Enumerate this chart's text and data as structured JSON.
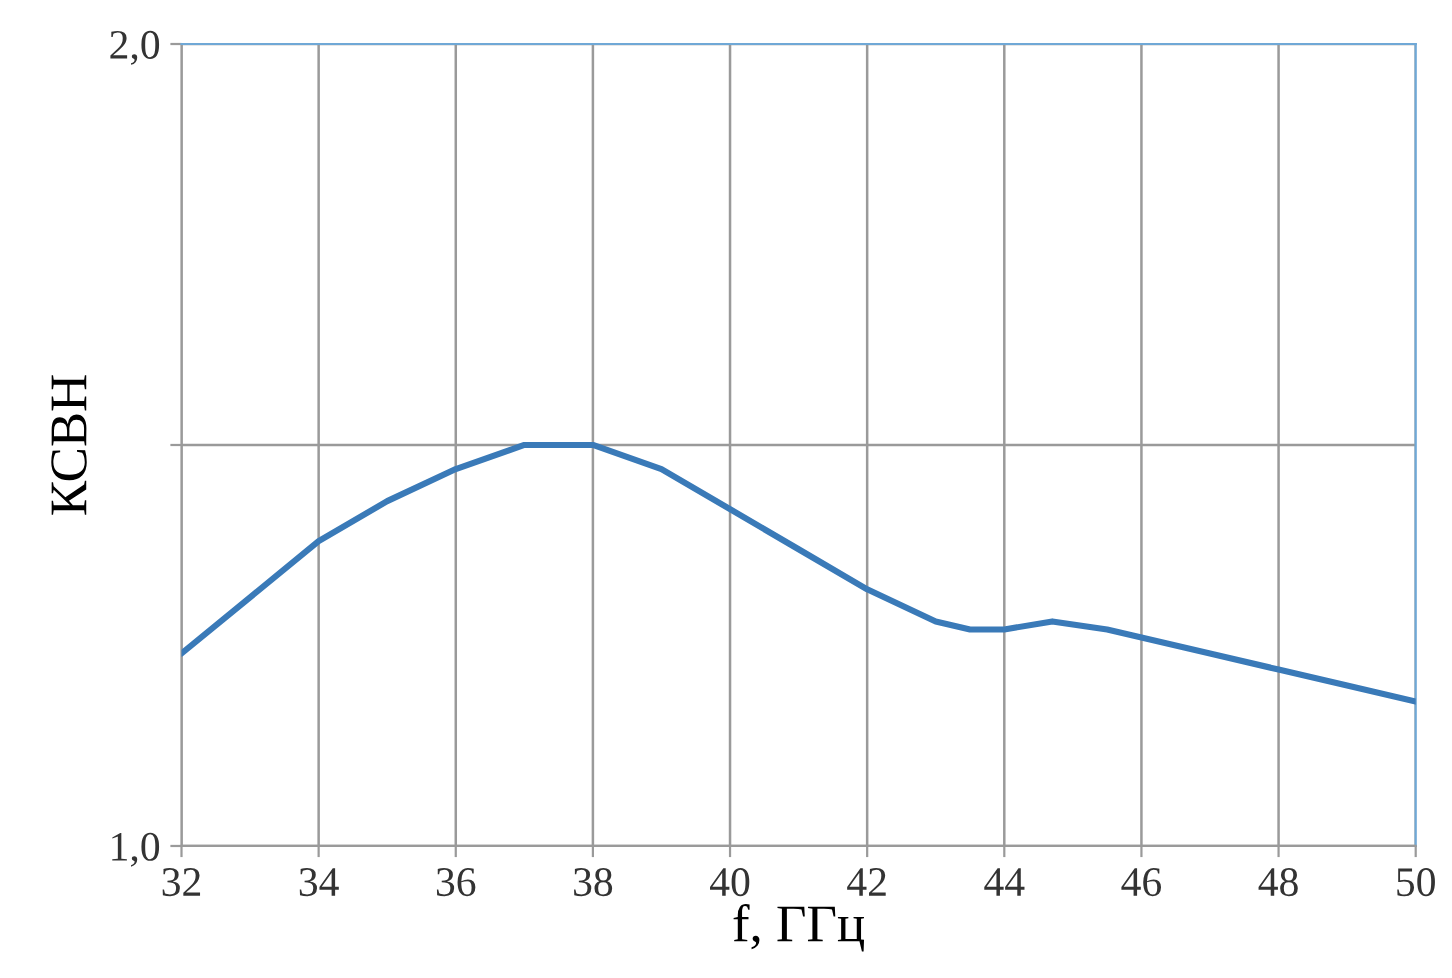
{
  "chart_data": {
    "type": "line",
    "xlabel": "f, ГГц",
    "ylabel": "КСВН",
    "x": [
      32,
      33,
      34,
      35,
      36,
      37,
      37.5,
      38,
      39,
      40,
      41,
      42,
      43,
      43.5,
      44,
      44.7,
      45.5,
      46,
      47,
      48,
      49,
      50
    ],
    "series": [
      {
        "color": "#3a7ab8",
        "values": [
          1.24,
          1.31,
          1.38,
          1.43,
          1.47,
          1.5,
          1.5,
          1.5,
          1.47,
          1.42,
          1.37,
          1.32,
          1.28,
          1.27,
          1.27,
          1.28,
          1.27,
          1.26,
          1.24,
          1.22,
          1.2,
          1.18
        ]
      }
    ],
    "xlim": [
      32,
      50
    ],
    "xticks": [
      32,
      34,
      36,
      38,
      40,
      42,
      44,
      46,
      48,
      50
    ],
    "ylim": [
      1.0,
      2.0
    ],
    "yticks": [
      {
        "value": 1.0,
        "label": "1,0"
      },
      {
        "value": 1.5,
        "label": null
      },
      {
        "value": 2.0,
        "label": "2,0"
      }
    ],
    "grid": true,
    "marker": "none",
    "line_style": "solid"
  }
}
